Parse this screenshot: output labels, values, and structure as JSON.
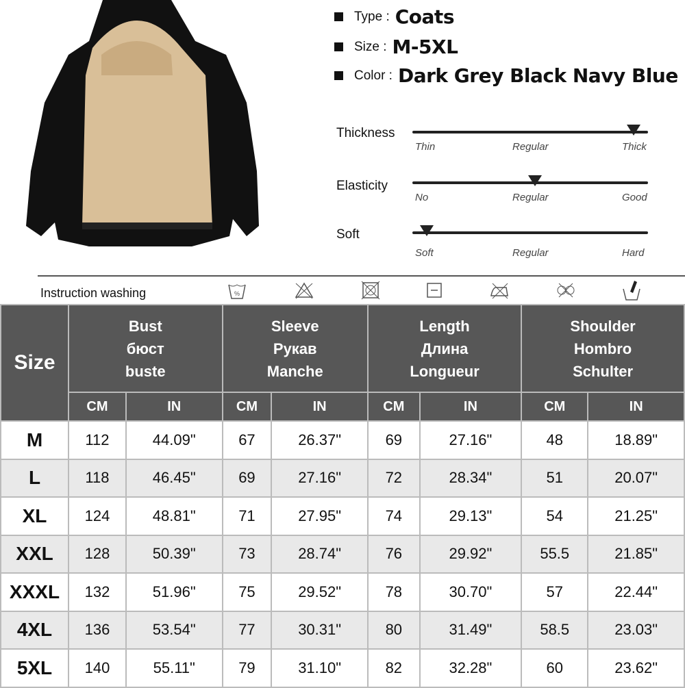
{
  "specs": [
    {
      "key": "Type :",
      "value": "Coats"
    },
    {
      "key": "Size :",
      "value": "M-5XL"
    },
    {
      "key": "Color :",
      "value": "Dark Grey Black Navy Blue"
    }
  ],
  "scales": [
    {
      "label": "Thickness",
      "ticks": [
        "Thin",
        "Regular",
        "Thick"
      ],
      "level_percent": 94
    },
    {
      "label": "Elasticity",
      "ticks": [
        "No",
        "Regular",
        "Good"
      ],
      "level_percent": 52
    },
    {
      "label": "Soft",
      "ticks": [
        "Soft",
        "Regular",
        "Hard"
      ],
      "level_percent": 6
    }
  ],
  "washing": {
    "label": "Instruction washing",
    "icons": [
      "hand-wash-30-icon",
      "do-not-bleach-icon",
      "do-not-tumble-dry-icon",
      "flat-dry-icon",
      "do-not-iron-icon",
      "do-not-dry-clean-icon",
      "hand-wash-icon"
    ]
  },
  "table": {
    "size_header": "Size",
    "groups": [
      {
        "lines": [
          "Bust",
          "бюст",
          "buste"
        ]
      },
      {
        "lines": [
          "Sleeve",
          "Рукав",
          "Manche"
        ]
      },
      {
        "lines": [
          "Length",
          "Длина",
          "Longueur"
        ]
      },
      {
        "lines": [
          "Shoulder",
          "Hombro",
          "Schulter"
        ]
      }
    ],
    "units": [
      "CM",
      "IN"
    ],
    "rows": [
      [
        "M",
        "112",
        "44.09\"",
        "67",
        "26.37\"",
        "69",
        "27.16\"",
        "48",
        "18.89\""
      ],
      [
        "L",
        "118",
        "46.45\"",
        "69",
        "27.16\"",
        "72",
        "28.34\"",
        "51",
        "20.07\""
      ],
      [
        "XL",
        "124",
        "48.81\"",
        "71",
        "27.95\"",
        "74",
        "29.13\"",
        "54",
        "21.25\""
      ],
      [
        "XXL",
        "128",
        "50.39\"",
        "73",
        "28.74\"",
        "76",
        "29.92\"",
        "55.5",
        "21.85\""
      ],
      [
        "XXXL",
        "132",
        "51.96\"",
        "75",
        "29.52\"",
        "78",
        "30.70\"",
        "57",
        "22.44\""
      ],
      [
        "4XL",
        "136",
        "53.54\"",
        "77",
        "30.31\"",
        "80",
        "31.49\"",
        "58.5",
        "23.03\""
      ],
      [
        "5XL",
        "140",
        "55.11\"",
        "79",
        "31.10\"",
        "82",
        "32.28\"",
        "60",
        "23.62\""
      ]
    ]
  }
}
